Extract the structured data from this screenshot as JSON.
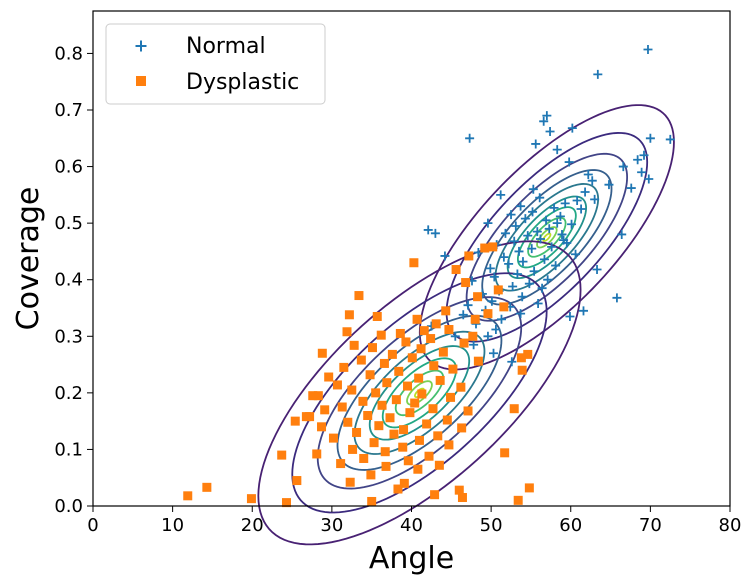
{
  "chart_data": {
    "type": "scatter",
    "title": "",
    "xlabel": "Angle",
    "ylabel": "Coverage",
    "xlim": [
      0,
      80
    ],
    "ylim": [
      0,
      0.875
    ],
    "xticks": [
      0,
      10,
      20,
      30,
      40,
      50,
      60,
      70,
      80
    ],
    "yticks": [
      0.0,
      0.1,
      0.2,
      0.3,
      0.4,
      0.5,
      0.6,
      0.7,
      0.8
    ],
    "xtick_labels": [
      "0",
      "10",
      "20",
      "30",
      "40",
      "50",
      "60",
      "70",
      "80"
    ],
    "ytick_labels": [
      "0.0",
      "0.1",
      "0.2",
      "0.3",
      "0.4",
      "0.5",
      "0.6",
      "0.7",
      "0.8"
    ],
    "grid": false,
    "legend_position": "top-left",
    "series": [
      {
        "name": "Normal",
        "marker": "plus",
        "color": "#1f77b4",
        "points": [
          [
            69.7,
            0.807
          ],
          [
            63.4,
            0.763
          ],
          [
            57.0,
            0.69
          ],
          [
            56.6,
            0.68
          ],
          [
            60.2,
            0.668
          ],
          [
            57.4,
            0.662
          ],
          [
            47.3,
            0.65
          ],
          [
            70.0,
            0.65
          ],
          [
            72.5,
            0.648
          ],
          [
            55.6,
            0.64
          ],
          [
            58.3,
            0.63
          ],
          [
            69.2,
            0.62
          ],
          [
            68.4,
            0.612
          ],
          [
            59.8,
            0.608
          ],
          [
            66.6,
            0.6
          ],
          [
            68.9,
            0.59
          ],
          [
            62.2,
            0.586
          ],
          [
            69.8,
            0.578
          ],
          [
            62.7,
            0.575
          ],
          [
            64.8,
            0.568
          ],
          [
            67.6,
            0.562
          ],
          [
            51.2,
            0.55
          ],
          [
            56.1,
            0.545
          ],
          [
            63.0,
            0.542
          ],
          [
            60.8,
            0.54
          ],
          [
            59.3,
            0.535
          ],
          [
            53.7,
            0.53
          ],
          [
            57.9,
            0.527
          ],
          [
            61.3,
            0.525
          ],
          [
            55.2,
            0.52
          ],
          [
            52.5,
            0.515
          ],
          [
            58.7,
            0.512
          ],
          [
            54.3,
            0.508
          ],
          [
            56.9,
            0.505
          ],
          [
            49.6,
            0.5
          ],
          [
            60.1,
            0.498
          ],
          [
            53.1,
            0.495
          ],
          [
            57.3,
            0.49
          ],
          [
            55.8,
            0.485
          ],
          [
            51.8,
            0.482
          ],
          [
            58.9,
            0.48
          ],
          [
            66.4,
            0.48
          ],
          [
            42.1,
            0.488
          ],
          [
            43.0,
            0.482
          ],
          [
            54.6,
            0.478
          ],
          [
            56.2,
            0.472
          ],
          [
            52.9,
            0.468
          ],
          [
            59.5,
            0.465
          ],
          [
            50.7,
            0.462
          ],
          [
            57.6,
            0.458
          ],
          [
            55.1,
            0.455
          ],
          [
            53.5,
            0.45
          ],
          [
            48.4,
            0.448
          ],
          [
            60.6,
            0.445
          ],
          [
            44.2,
            0.442
          ],
          [
            51.6,
            0.44
          ],
          [
            56.7,
            0.436
          ],
          [
            54.0,
            0.432
          ],
          [
            52.2,
            0.428
          ],
          [
            58.1,
            0.425
          ],
          [
            49.9,
            0.42
          ],
          [
            63.3,
            0.418
          ],
          [
            55.4,
            0.415
          ],
          [
            53.3,
            0.41
          ],
          [
            50.4,
            0.405
          ],
          [
            57.1,
            0.4
          ],
          [
            47.6,
            0.398
          ],
          [
            54.8,
            0.393
          ],
          [
            52.7,
            0.388
          ],
          [
            56.4,
            0.385
          ],
          [
            51.0,
            0.38
          ],
          [
            48.9,
            0.375
          ],
          [
            53.9,
            0.37
          ],
          [
            65.8,
            0.368
          ],
          [
            50.1,
            0.362
          ],
          [
            55.9,
            0.358
          ],
          [
            47.1,
            0.355
          ],
          [
            52.4,
            0.352
          ],
          [
            49.3,
            0.346
          ],
          [
            61.6,
            0.345
          ],
          [
            53.7,
            0.34
          ],
          [
            46.5,
            0.338
          ],
          [
            59.9,
            0.335
          ],
          [
            51.3,
            0.33
          ],
          [
            48.1,
            0.322
          ],
          [
            42.5,
            0.318
          ],
          [
            50.6,
            0.312
          ],
          [
            49.6,
            0.3
          ],
          [
            47.8,
            0.285
          ],
          [
            50.3,
            0.27
          ],
          [
            52.6,
            0.255
          ],
          [
            45.5,
            0.3
          ],
          [
            58.3,
            0.5
          ],
          [
            55.3,
            0.56
          ],
          [
            61.8,
            0.555
          ],
          [
            59.1,
            0.47
          ]
        ]
      },
      {
        "name": "Dysplastic",
        "marker": "square",
        "color": "#ff7f0e",
        "points": [
          [
            40.3,
            0.43
          ],
          [
            47.2,
            0.442
          ],
          [
            45.6,
            0.418
          ],
          [
            49.2,
            0.456
          ],
          [
            50.2,
            0.458
          ],
          [
            46.8,
            0.395
          ],
          [
            50.9,
            0.382
          ],
          [
            33.4,
            0.372
          ],
          [
            48.3,
            0.37
          ],
          [
            51.6,
            0.352
          ],
          [
            44.3,
            0.345
          ],
          [
            32.2,
            0.338
          ],
          [
            48.0,
            0.33
          ],
          [
            49.6,
            0.34
          ],
          [
            35.7,
            0.335
          ],
          [
            40.7,
            0.33
          ],
          [
            43.1,
            0.322
          ],
          [
            41.6,
            0.31
          ],
          [
            31.9,
            0.308
          ],
          [
            44.7,
            0.312
          ],
          [
            38.6,
            0.305
          ],
          [
            36.2,
            0.302
          ],
          [
            47.7,
            0.3
          ],
          [
            42.4,
            0.296
          ],
          [
            39.3,
            0.29
          ],
          [
            46.6,
            0.288
          ],
          [
            32.8,
            0.284
          ],
          [
            35.1,
            0.28
          ],
          [
            41.2,
            0.278
          ],
          [
            44.0,
            0.272
          ],
          [
            28.8,
            0.27
          ],
          [
            37.6,
            0.268
          ],
          [
            40.1,
            0.262
          ],
          [
            33.7,
            0.258
          ],
          [
            48.4,
            0.256
          ],
          [
            54.6,
            0.268
          ],
          [
            53.8,
            0.262
          ],
          [
            36.6,
            0.252
          ],
          [
            42.8,
            0.248
          ],
          [
            31.5,
            0.245
          ],
          [
            45.2,
            0.242
          ],
          [
            38.4,
            0.238
          ],
          [
            34.8,
            0.232
          ],
          [
            29.6,
            0.228
          ],
          [
            40.9,
            0.226
          ],
          [
            43.6,
            0.222
          ],
          [
            36.9,
            0.218
          ],
          [
            53.9,
            0.24
          ],
          [
            30.7,
            0.214
          ],
          [
            39.5,
            0.212
          ],
          [
            46.2,
            0.21
          ],
          [
            32.5,
            0.205
          ],
          [
            35.5,
            0.2
          ],
          [
            41.3,
            0.198
          ],
          [
            27.6,
            0.195
          ],
          [
            44.9,
            0.192
          ],
          [
            38.1,
            0.188
          ],
          [
            33.9,
            0.185
          ],
          [
            40.4,
            0.182
          ],
          [
            36.3,
            0.178
          ],
          [
            31.3,
            0.175
          ],
          [
            42.7,
            0.172
          ],
          [
            29.1,
            0.17
          ],
          [
            47.1,
            0.168
          ],
          [
            39.8,
            0.165
          ],
          [
            34.5,
            0.16
          ],
          [
            26.8,
            0.158
          ],
          [
            37.3,
            0.156
          ],
          [
            44.5,
            0.152
          ],
          [
            25.4,
            0.15
          ],
          [
            52.9,
            0.172
          ],
          [
            32.0,
            0.148
          ],
          [
            41.9,
            0.145
          ],
          [
            35.9,
            0.142
          ],
          [
            28.7,
            0.14
          ],
          [
            46.3,
            0.138
          ],
          [
            39.0,
            0.135
          ],
          [
            33.1,
            0.13
          ],
          [
            37.8,
            0.127
          ],
          [
            43.3,
            0.124
          ],
          [
            30.2,
            0.12
          ],
          [
            41.0,
            0.116
          ],
          [
            35.3,
            0.112
          ],
          [
            44.7,
            0.108
          ],
          [
            38.9,
            0.104
          ],
          [
            32.6,
            0.1
          ],
          [
            36.7,
            0.096
          ],
          [
            28.1,
            0.092
          ],
          [
            23.7,
            0.09
          ],
          [
            42.2,
            0.088
          ],
          [
            51.7,
            0.094
          ],
          [
            34.0,
            0.084
          ],
          [
            39.6,
            0.08
          ],
          [
            31.1,
            0.075
          ],
          [
            43.5,
            0.072
          ],
          [
            36.8,
            0.07
          ],
          [
            40.8,
            0.065
          ],
          [
            34.9,
            0.055
          ],
          [
            25.6,
            0.045
          ],
          [
            39.1,
            0.04
          ],
          [
            32.3,
            0.042
          ],
          [
            14.3,
            0.033
          ],
          [
            38.3,
            0.03
          ],
          [
            46.0,
            0.028
          ],
          [
            54.8,
            0.032
          ],
          [
            11.9,
            0.018
          ],
          [
            19.9,
            0.013
          ],
          [
            42.9,
            0.02
          ],
          [
            46.4,
            0.015
          ],
          [
            53.4,
            0.01
          ],
          [
            24.3,
            0.006
          ],
          [
            35.0,
            0.008
          ],
          [
            28.3,
            0.195
          ],
          [
            27.2,
            0.158
          ]
        ]
      }
    ],
    "contours": [
      {
        "group": "Normal",
        "center": [
          57.0,
          0.475
        ],
        "std": [
          5.6,
          0.082
        ],
        "rho": 0.72,
        "levels": [
          0.08,
          0.22,
          0.42,
          0.65,
          0.88,
          1.15,
          1.45,
          1.8,
          2.25,
          2.85
        ],
        "colors": [
          "#bddf26",
          "#7ad151",
          "#44bf70",
          "#22a884",
          "#21918c",
          "#2a788e",
          "#355f8d",
          "#414487",
          "#3b2a7e",
          "#482173"
        ]
      },
      {
        "group": "Dysplastic",
        "center": [
          41.0,
          0.2
        ],
        "std": [
          7.1,
          0.094
        ],
        "rho": 0.68,
        "levels": [
          0.08,
          0.22,
          0.42,
          0.65,
          0.88,
          1.15,
          1.45,
          1.8,
          2.25,
          2.85
        ],
        "colors": [
          "#bddf26",
          "#7ad151",
          "#44bf70",
          "#22a884",
          "#21918c",
          "#2a788e",
          "#355f8d",
          "#414487",
          "#3b2a7e",
          "#482173"
        ]
      }
    ]
  },
  "legend": {
    "normal_label": "Normal",
    "dysplastic_label": "Dysplastic"
  }
}
